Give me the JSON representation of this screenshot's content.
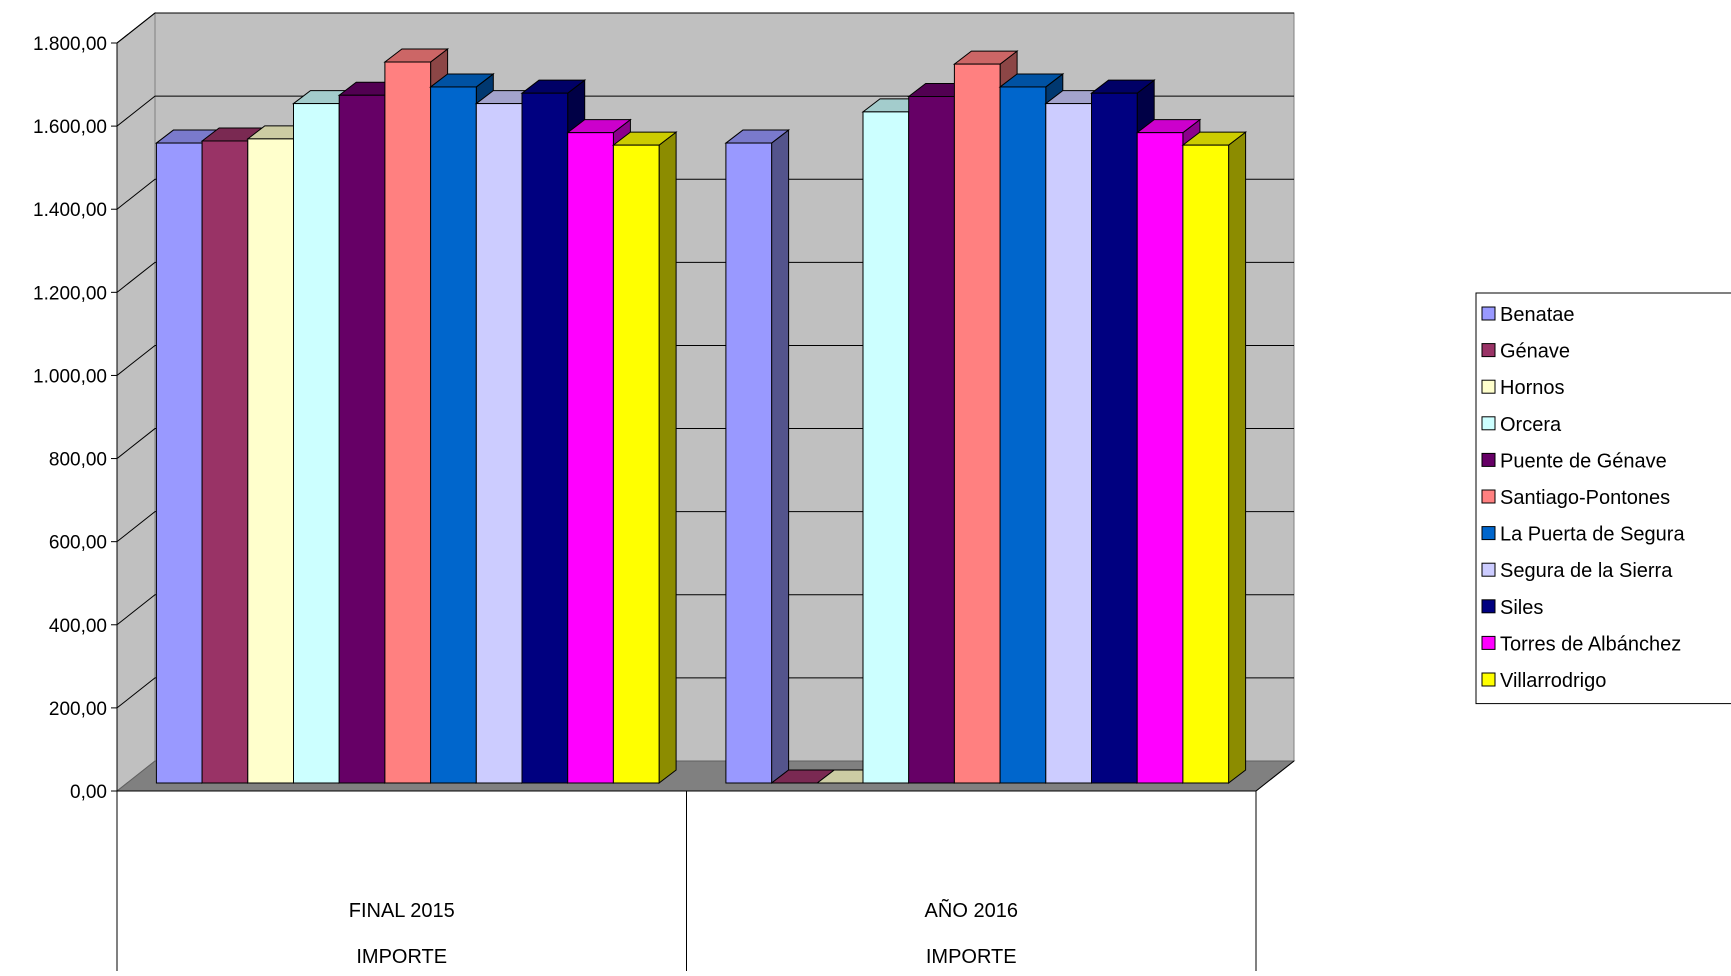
{
  "chart_data": {
    "type": "bar",
    "style": "3d-clustered-column",
    "title": "",
    "xlabel": "",
    "ylabel": "",
    "ylim": [
      0,
      1800
    ],
    "y_ticks": [
      "0,00",
      "200,00",
      "400,00",
      "600,00",
      "800,00",
      "1.000,00",
      "1.200,00",
      "1.400,00",
      "1.600,00",
      "1.800,00"
    ],
    "y_tick_values": [
      0,
      200,
      400,
      600,
      800,
      1000,
      1200,
      1400,
      1600,
      1800
    ],
    "grid": true,
    "legend_position": "right",
    "categories": [
      "FINAL 2015",
      "AÑO 2016"
    ],
    "category_group_label": "IMPORTE",
    "series": [
      {
        "name": "Benatae",
        "color": "#9999FF",
        "values": [
          1540,
          1540
        ]
      },
      {
        "name": "Génave",
        "color": "#993366",
        "values": [
          1545,
          0
        ]
      },
      {
        "name": "Hornos",
        "color": "#FFFFCC",
        "values": [
          1550,
          0
        ]
      },
      {
        "name": "Orcera",
        "color": "#CCFFFF",
        "values": [
          1635,
          1615
        ]
      },
      {
        "name": "Puente de Génave",
        "color": "#660066",
        "values": [
          1655,
          1652
        ]
      },
      {
        "name": "Santiago-Pontones",
        "color": "#FF8080",
        "values": [
          1735,
          1730
        ]
      },
      {
        "name": "La Puerta de Segura",
        "color": "#0066CC",
        "values": [
          1675,
          1675
        ]
      },
      {
        "name": "Segura de la Sierra",
        "color": "#CCCCFF",
        "values": [
          1635,
          1635
        ]
      },
      {
        "name": "Siles",
        "color": "#000080",
        "values": [
          1660,
          1660
        ]
      },
      {
        "name": "Torres de Albánchez",
        "color": "#FF00FF",
        "values": [
          1565,
          1565
        ]
      },
      {
        "name": "Villarrodrigo",
        "color": "#FFFF00",
        "values": [
          1535,
          1535
        ]
      }
    ],
    "colors": {
      "wall": "#C0C0C0",
      "floor": "#808080",
      "gridline": "#000000"
    }
  }
}
